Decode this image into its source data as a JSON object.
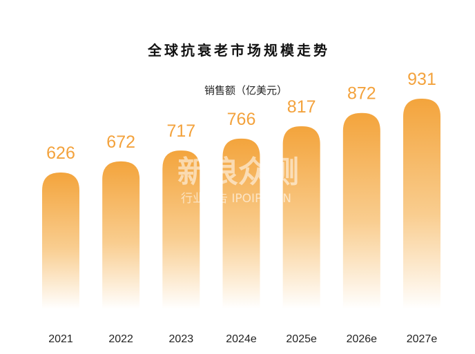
{
  "chart_data": {
    "type": "bar",
    "title": "全球抗衰老市场规模走势",
    "ylabel": "销售额（亿美元）",
    "categories": [
      "2021",
      "2022",
      "2023",
      "2024e",
      "2025e",
      "2026e",
      "2027e"
    ],
    "values": [
      626,
      672,
      717,
      766,
      817,
      872,
      931
    ],
    "ylim": [
      0,
      1000
    ],
    "grid": false,
    "colors": {
      "bar_top": "#f3a43c",
      "bar_bottom": "#ffffff",
      "value_label": "#f3a23c"
    }
  },
  "watermark": {
    "main": "新浪众测",
    "sub": "行业报告 IPOIPO.CN"
  }
}
